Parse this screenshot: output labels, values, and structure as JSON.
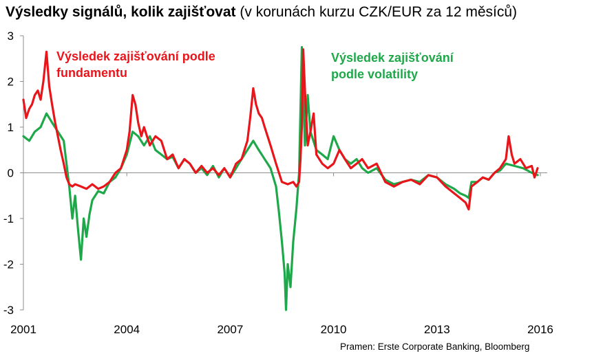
{
  "title": {
    "bold": "Výsledky signálů, kolik zajišťovat",
    "normal": "(v korunách kurzu CZK/EUR za 12 měsíců)"
  },
  "source": "Pramen: Erste Corporate Banking, Bloomberg",
  "chart_data": {
    "type": "line",
    "x_unit": "year",
    "xlim": [
      2001,
      2016.2
    ],
    "ylim": [
      -3,
      3
    ],
    "x_ticks": [
      2001,
      2004,
      2007,
      2010,
      2013,
      2016
    ],
    "x_tick_labels": [
      "2001",
      "2004",
      "2007",
      "2010",
      "2013",
      "2016"
    ],
    "y_ticks": [
      3,
      2,
      1,
      0,
      -1,
      -2,
      -3
    ],
    "y_tick_labels": [
      "3",
      "2",
      "1",
      "0",
      "-1",
      "-2",
      "-3"
    ],
    "grid": false,
    "zero_line": true,
    "series": [
      {
        "name": "Výsledek zajišťování podle fundamentu",
        "color": "#e8151b",
        "x": [
          2001.0,
          2001.08,
          2001.17,
          2001.25,
          2001.33,
          2001.42,
          2001.5,
          2001.58,
          2001.67,
          2001.75,
          2001.83,
          2001.92,
          2002.0,
          2002.08,
          2002.17,
          2002.25,
          2002.33,
          2002.42,
          2002.5,
          2002.67,
          2002.83,
          2003.0,
          2003.17,
          2003.33,
          2003.5,
          2003.67,
          2003.83,
          2004.0,
          2004.08,
          2004.17,
          2004.25,
          2004.33,
          2004.42,
          2004.5,
          2004.67,
          2004.83,
          2005.0,
          2005.17,
          2005.33,
          2005.5,
          2005.67,
          2005.83,
          2006.0,
          2006.17,
          2006.33,
          2006.5,
          2006.67,
          2006.83,
          2007.0,
          2007.17,
          2007.33,
          2007.5,
          2007.58,
          2007.67,
          2007.75,
          2007.83,
          2007.92,
          2008.0,
          2008.17,
          2008.33,
          2008.5,
          2008.67,
          2008.83,
          2008.92,
          2009.0,
          2009.04,
          2009.08,
          2009.12,
          2009.17,
          2009.25,
          2009.33,
          2009.42,
          2009.5,
          2009.67,
          2009.83,
          2010.0,
          2010.17,
          2010.33,
          2010.5,
          2010.67,
          2010.83,
          2011.0,
          2011.25,
          2011.5,
          2011.75,
          2012.0,
          2012.25,
          2012.5,
          2012.75,
          2013.0,
          2013.25,
          2013.5,
          2013.67,
          2013.83,
          2013.92,
          2014.0,
          2014.17,
          2014.33,
          2014.5,
          2014.67,
          2014.83,
          2015.0,
          2015.08,
          2015.17,
          2015.25,
          2015.42,
          2015.58,
          2015.75,
          2015.83,
          2015.92
        ],
        "y": [
          1.6,
          1.2,
          1.4,
          1.5,
          1.7,
          1.8,
          1.6,
          2.0,
          2.65,
          1.9,
          1.5,
          1.1,
          0.8,
          0.5,
          0.2,
          -0.1,
          -0.25,
          -0.3,
          -0.25,
          -0.3,
          -0.35,
          -0.25,
          -0.35,
          -0.3,
          -0.2,
          0.0,
          0.1,
          0.5,
          0.9,
          1.7,
          1.5,
          1.1,
          0.8,
          1.0,
          0.6,
          0.8,
          0.7,
          0.3,
          0.4,
          0.1,
          0.3,
          0.2,
          0.0,
          0.15,
          0.0,
          0.1,
          -0.05,
          0.1,
          -0.1,
          0.2,
          0.3,
          0.7,
          1.2,
          1.85,
          1.5,
          1.3,
          1.2,
          1.0,
          0.6,
          0.2,
          -0.2,
          -0.25,
          -0.2,
          -0.3,
          -0.2,
          0.3,
          1.0,
          2.7,
          1.8,
          0.6,
          0.9,
          1.3,
          0.4,
          0.2,
          0.1,
          0.2,
          0.5,
          0.3,
          0.1,
          0.2,
          0.3,
          0.1,
          0.2,
          -0.2,
          -0.3,
          -0.2,
          -0.15,
          -0.25,
          -0.05,
          -0.1,
          -0.3,
          -0.45,
          -0.55,
          -0.65,
          -0.8,
          -0.3,
          -0.2,
          -0.1,
          -0.15,
          0.0,
          0.1,
          0.3,
          0.8,
          0.4,
          0.2,
          0.3,
          0.1,
          0.15,
          -0.1,
          0.1
        ]
      },
      {
        "name": "Výsledek zajišťování podle volatility",
        "color": "#1ea84a",
        "x": [
          2001.0,
          2001.17,
          2001.33,
          2001.5,
          2001.67,
          2001.83,
          2002.0,
          2002.17,
          2002.33,
          2002.42,
          2002.5,
          2002.58,
          2002.67,
          2002.75,
          2002.83,
          2002.92,
          2003.0,
          2003.17,
          2003.33,
          2003.5,
          2003.67,
          2003.83,
          2004.0,
          2004.17,
          2004.33,
          2004.5,
          2004.67,
          2004.83,
          2005.0,
          2005.17,
          2005.33,
          2005.5,
          2005.67,
          2005.83,
          2006.0,
          2006.17,
          2006.33,
          2006.5,
          2006.67,
          2006.83,
          2007.0,
          2007.17,
          2007.33,
          2007.5,
          2007.67,
          2007.83,
          2008.0,
          2008.17,
          2008.33,
          2008.42,
          2008.5,
          2008.58,
          2008.62,
          2008.67,
          2008.75,
          2008.83,
          2008.92,
          2009.0,
          2009.08,
          2009.17,
          2009.25,
          2009.33,
          2009.5,
          2009.67,
          2009.83,
          2010.0,
          2010.17,
          2010.33,
          2010.5,
          2010.67,
          2010.83,
          2011.0,
          2011.25,
          2011.5,
          2011.75,
          2012.0,
          2012.25,
          2012.5,
          2012.75,
          2013.0,
          2013.25,
          2013.5,
          2013.67,
          2013.83,
          2013.92,
          2014.0,
          2014.17,
          2014.33,
          2014.5,
          2014.67,
          2014.83,
          2015.0,
          2015.25,
          2015.5,
          2015.75,
          2015.92
        ],
        "y": [
          0.8,
          0.7,
          0.9,
          1.0,
          1.3,
          1.1,
          0.9,
          0.7,
          -0.3,
          -1.0,
          -0.5,
          -1.2,
          -1.9,
          -1.0,
          -1.4,
          -0.9,
          -0.6,
          -0.4,
          -0.45,
          -0.2,
          -0.1,
          0.1,
          0.4,
          0.9,
          0.8,
          0.6,
          0.8,
          0.5,
          0.4,
          0.3,
          0.35,
          0.1,
          0.3,
          0.2,
          0.0,
          0.1,
          -0.05,
          0.15,
          -0.1,
          0.1,
          -0.1,
          0.1,
          0.3,
          0.5,
          0.7,
          0.5,
          0.3,
          0.1,
          -0.3,
          -0.9,
          -1.5,
          -2.2,
          -3.0,
          -2.0,
          -2.5,
          -1.5,
          -0.8,
          0.0,
          2.75,
          0.6,
          1.7,
          0.9,
          0.5,
          0.4,
          0.3,
          0.8,
          0.5,
          0.3,
          0.2,
          0.3,
          0.1,
          0.0,
          0.1,
          -0.15,
          -0.25,
          -0.2,
          -0.15,
          -0.2,
          -0.05,
          -0.1,
          -0.25,
          -0.35,
          -0.45,
          -0.5,
          -0.55,
          -0.2,
          -0.2,
          -0.1,
          -0.15,
          0.0,
          0.05,
          0.2,
          0.15,
          0.1,
          0.0,
          -0.05
        ]
      }
    ],
    "annotations": [
      {
        "series": 0,
        "lines": [
          "Výsledek zajišťování podle",
          "fundamentu"
        ],
        "color": "#e8151b"
      },
      {
        "series": 1,
        "lines": [
          "Výsledek zajišťování",
          "podle volatility"
        ],
        "color": "#1ea84a"
      }
    ]
  }
}
